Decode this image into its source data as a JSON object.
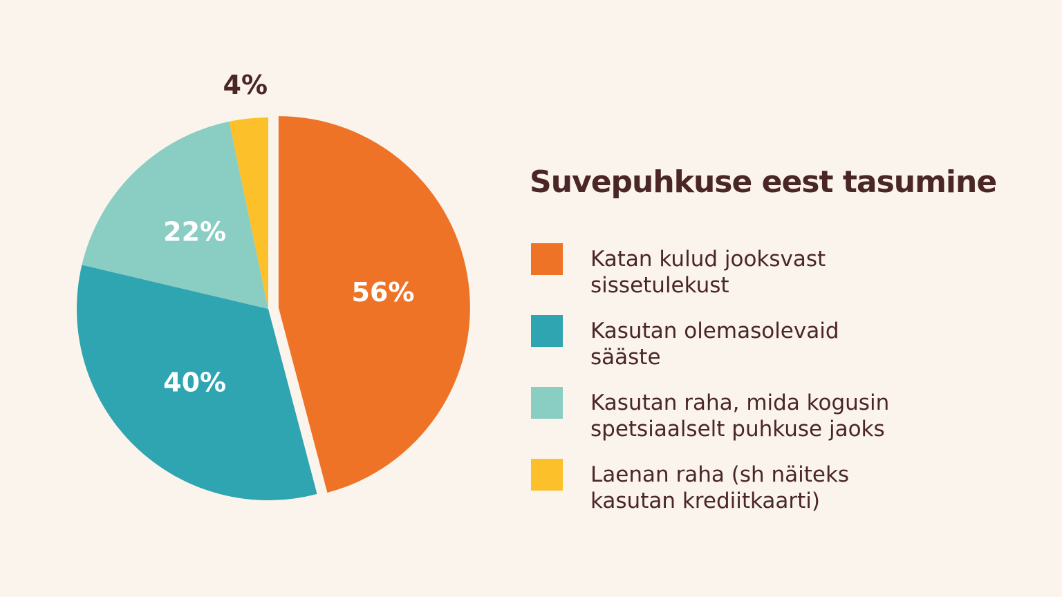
{
  "chart_data": {
    "type": "pie",
    "title": "Suvepuhkuse eest tasumine",
    "categories": [
      "Katan kulud jooksvast sissetulekust",
      "Kasutan olemasolevaid sääste",
      "Kasutan raha, mida kogusin spetsiaalselt puhkuse jaoks",
      "Laenan raha (sh näiteks kasutan krediitkaarti)"
    ],
    "values": [
      56,
      40,
      22,
      4
    ],
    "value_labels": [
      "56%",
      "40%",
      "22%",
      "4%"
    ],
    "colors": [
      "#ee7326",
      "#2fa5b2",
      "#8acdc2",
      "#fcc02a"
    ]
  }
}
